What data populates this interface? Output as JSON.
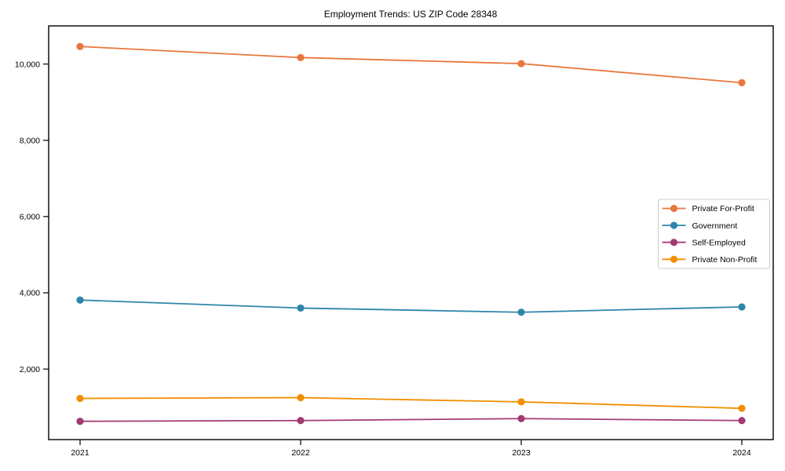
{
  "chart_data": {
    "type": "line",
    "title": "Employment Trends: US ZIP Code 28348",
    "xlabel": "",
    "ylabel": "",
    "categories": [
      "2021",
      "2022",
      "2023",
      "2024"
    ],
    "series": [
      {
        "name": "Private For-Profit",
        "color": "#E8773D",
        "values": [
          10460,
          10170,
          10010,
          9510
        ]
      },
      {
        "name": "Government",
        "color": "#2E86AB",
        "values": [
          3810,
          3600,
          3490,
          3630
        ]
      },
      {
        "name": "Self-Employed",
        "color": "#A23B72",
        "values": [
          630,
          650,
          700,
          650
        ]
      },
      {
        "name": "Private Non-Profit",
        "color": "#F18F01",
        "values": [
          1230,
          1250,
          1140,
          970
        ]
      }
    ],
    "y_ticks": [
      2000,
      4000,
      6000,
      8000,
      10000
    ],
    "y_tick_labels": [
      "2,000",
      "4,000",
      "6,000",
      "8,000",
      "10,000"
    ],
    "ylim": [
      150,
      11000
    ],
    "grid": false,
    "legend_position": "center-right",
    "marker": "circle",
    "frame_color": "#000000",
    "legend_border_color": "#cccccc",
    "background_color": "#ffffff"
  }
}
